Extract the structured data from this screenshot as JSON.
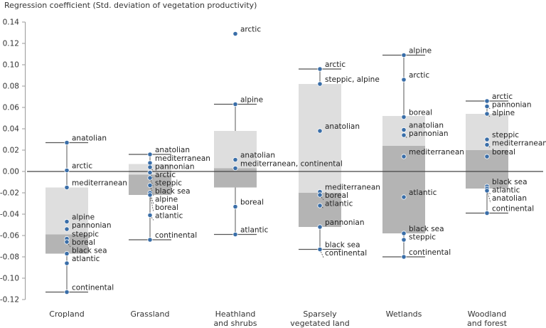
{
  "chart_data": {
    "type": "box-dot",
    "ylabel": "Regression coefficient (Std. deviation of vegetation productivity)",
    "ylim": [
      -0.12,
      0.14
    ],
    "yticks": [
      -0.12,
      -0.1,
      -0.08,
      -0.06,
      -0.04,
      -0.02,
      0.0,
      0.02,
      0.04,
      0.06,
      0.08,
      0.1,
      0.12,
      0.14
    ],
    "ytick_labels": [
      "-0.12",
      "-0.10",
      "-0.08",
      "-0.06",
      "-0.04",
      "-0.02",
      "0.00",
      "0.02",
      "0.04",
      "0.06",
      "0.08",
      "0.10",
      "0.12",
      "0.14"
    ],
    "colors": {
      "upper_box": "#dedede",
      "lower_box": "#b4b4b4",
      "point": "#3a6ea8",
      "whisker": "#555555",
      "zero_line": "#444444"
    },
    "categories": [
      {
        "label": "Cropland",
        "whisker_low": -0.113,
        "q1": -0.077,
        "median": -0.059,
        "q3": -0.015,
        "whisker_high": 0.027,
        "points": [
          {
            "value": 0.027,
            "label": "anatolian"
          },
          {
            "value": 0.001,
            "label": "arctic"
          },
          {
            "value": -0.015,
            "label": "mediterranean"
          },
          {
            "value": -0.047,
            "label": "alpine"
          },
          {
            "value": -0.054,
            "label": "pannonian"
          },
          {
            "value": -0.063,
            "label": "steppic"
          },
          {
            "value": -0.066,
            "label": "boreal"
          },
          {
            "value": -0.077,
            "label": "black sea"
          },
          {
            "value": -0.086,
            "label": "atlantic"
          },
          {
            "value": -0.113,
            "label": "continental"
          }
        ]
      },
      {
        "label": "Grassland",
        "whisker_low": -0.064,
        "q1": -0.022,
        "median": -0.003,
        "q3": 0.007,
        "whisker_high": 0.016,
        "points": [
          {
            "value": 0.016,
            "label": "anatolian"
          },
          {
            "value": 0.008,
            "label": "mediterranean"
          },
          {
            "value": 0.004,
            "label": "pannonian"
          },
          {
            "value": -0.001,
            "label": "arctic"
          },
          {
            "value": -0.006,
            "label": "steppic"
          },
          {
            "value": -0.013,
            "label": "black sea"
          },
          {
            "value": -0.02,
            "label": "alpine"
          },
          {
            "value": -0.022,
            "label": "boreal"
          },
          {
            "value": -0.041,
            "label": "atlantic"
          },
          {
            "value": -0.064,
            "label": "continental"
          }
        ]
      },
      {
        "label": "Heathland and shrubs",
        "whisker_low": -0.059,
        "q1": -0.015,
        "median": 0.003,
        "q3": 0.038,
        "whisker_high": 0.063,
        "points": [
          {
            "value": 0.129,
            "label": "arctic"
          },
          {
            "value": 0.063,
            "label": "alpine"
          },
          {
            "value": 0.011,
            "label": "anatolian"
          },
          {
            "value": 0.003,
            "label": "mediterranean, continental"
          },
          {
            "value": -0.033,
            "label": "boreal"
          },
          {
            "value": -0.059,
            "label": "atlantic"
          }
        ]
      },
      {
        "label": "Sparsely vegetated land",
        "whisker_low": -0.073,
        "q1": -0.052,
        "median": -0.02,
        "q3": 0.082,
        "whisker_high": 0.096,
        "points": [
          {
            "value": 0.096,
            "label": "arctic"
          },
          {
            "value": 0.082,
            "label": "steppic, alpine"
          },
          {
            "value": 0.038,
            "label": "anatolian"
          },
          {
            "value": -0.019,
            "label": "mediterranean"
          },
          {
            "value": -0.022,
            "label": "boreal"
          },
          {
            "value": -0.032,
            "label": "atlantic"
          },
          {
            "value": -0.052,
            "label": "pannonian"
          },
          {
            "value": -0.073,
            "label": "black sea"
          },
          {
            "value": -0.073,
            "label": "continental"
          }
        ]
      },
      {
        "label": "Wetlands",
        "whisker_low": -0.08,
        "q1": -0.058,
        "median": 0.024,
        "q3": 0.052,
        "whisker_high": 0.109,
        "points": [
          {
            "value": 0.109,
            "label": "alpine"
          },
          {
            "value": 0.086,
            "label": "arctic"
          },
          {
            "value": 0.051,
            "label": "boreal"
          },
          {
            "value": 0.039,
            "label": "anatolian"
          },
          {
            "value": 0.034,
            "label": "pannonian"
          },
          {
            "value": 0.014,
            "label": "mediterranean"
          },
          {
            "value": -0.024,
            "label": "atlantic"
          },
          {
            "value": -0.058,
            "label": "black sea"
          },
          {
            "value": -0.064,
            "label": "steppic"
          },
          {
            "value": -0.08,
            "label": "continental"
          }
        ]
      },
      {
        "label": "Woodland and forest",
        "whisker_low": -0.039,
        "q1": -0.016,
        "median": 0.02,
        "q3": 0.054,
        "whisker_high": 0.066,
        "points": [
          {
            "value": 0.066,
            "label": "arctic"
          },
          {
            "value": 0.061,
            "label": "pannonian"
          },
          {
            "value": 0.054,
            "label": "alpine"
          },
          {
            "value": 0.03,
            "label": "steppic"
          },
          {
            "value": 0.025,
            "label": "mediterranean"
          },
          {
            "value": 0.014,
            "label": "boreal"
          },
          {
            "value": -0.014,
            "label": "black sea"
          },
          {
            "value": -0.016,
            "label": "atlantic"
          },
          {
            "value": -0.018,
            "label": "anatolian"
          },
          {
            "value": -0.039,
            "label": "continental"
          }
        ]
      }
    ]
  }
}
